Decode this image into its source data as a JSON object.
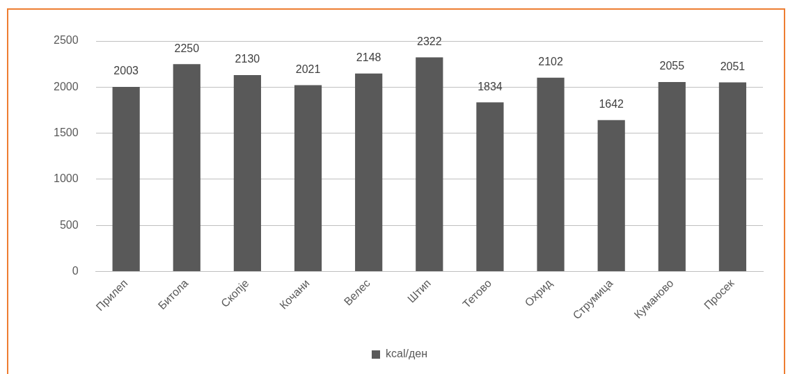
{
  "chart_data": {
    "type": "bar",
    "categories": [
      "Прилеп",
      "Битола",
      "Скопје",
      "Кочани",
      "Велес",
      "Штип",
      "Тетово",
      "Охрид",
      "Струмица",
      "Куманово",
      "Просек"
    ],
    "series": [
      {
        "name": "kcal/ден",
        "color": "#595959",
        "values": [
          2003,
          2250,
          2130,
          2021,
          2148,
          2322,
          1834,
          2102,
          1642,
          2055,
          2051
        ]
      }
    ],
    "ylim": [
      0,
      2500
    ],
    "yticks": [
      0,
      500,
      1000,
      1500,
      2000,
      2500
    ],
    "grid": "y",
    "legend": "bottom",
    "data_labels": true
  }
}
